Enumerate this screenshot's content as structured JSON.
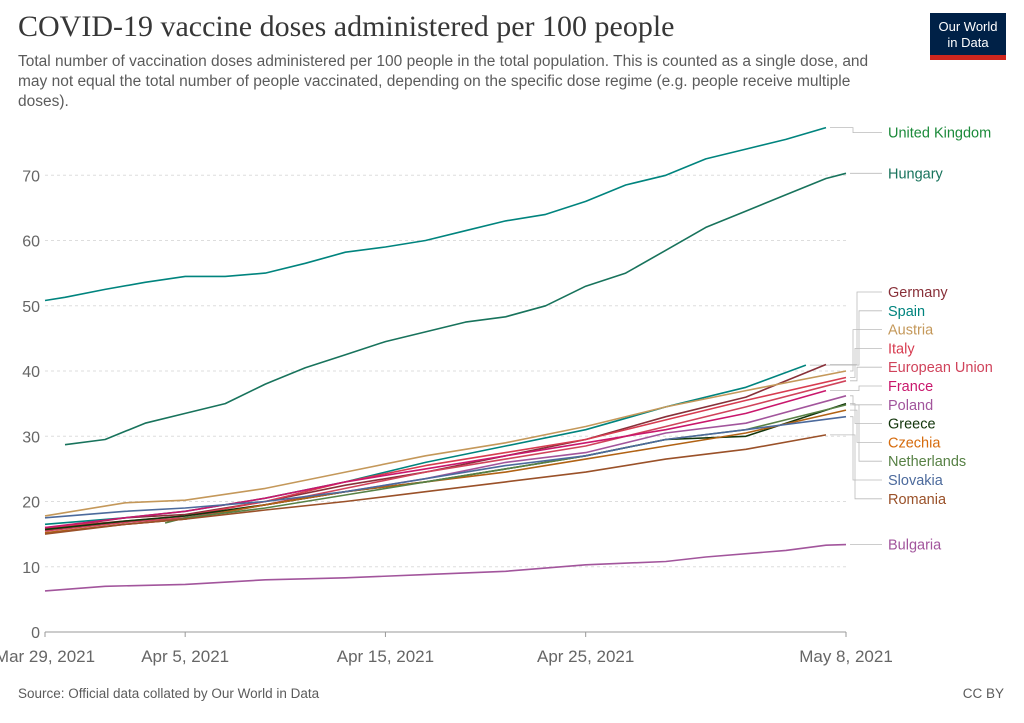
{
  "header": {
    "title": "COVID-19 vaccine doses administered per 100 people",
    "subtitle": "Total number of vaccination doses administered per 100 people in the total population. This is counted as a single dose, and may not equal the total number of people vaccinated, depending on the specific dose regime (e.g. people receive multiple doses).",
    "logo_line1": "Our World",
    "logo_line2": "in Data",
    "logo_bg": "#002147",
    "logo_accent": "#ce261e"
  },
  "footer": {
    "source": "Source: Official data collated by Our World in Data",
    "license": "CC BY"
  },
  "chart_data": {
    "type": "line",
    "x_ticks": [
      "Mar 29, 2021",
      "Apr 5, 2021",
      "Apr 15, 2021",
      "Apr 25, 2021",
      "May 8, 2021"
    ],
    "x_tick_dates": [
      "2021-03-29",
      "2021-04-05",
      "2021-04-15",
      "2021-04-25",
      "2021-05-08"
    ],
    "xlim": [
      "2021-03-29",
      "2021-05-08"
    ],
    "ylim": [
      0,
      80
    ],
    "y_ticks": [
      0,
      10,
      20,
      30,
      40,
      50,
      60,
      70
    ],
    "grid": "horizontal dashed",
    "legend": "labels at right end of lines",
    "series": [
      {
        "name": "United Kingdom",
        "color": "#00847e",
        "label_color": "#1b8a3a",
        "points": [
          [
            "2021-03-29",
            50.8
          ],
          [
            "2021-03-30",
            51.3
          ],
          [
            "2021-04-01",
            52.5
          ],
          [
            "2021-04-03",
            53.6
          ],
          [
            "2021-04-05",
            54.5
          ],
          [
            "2021-04-07",
            54.5
          ],
          [
            "2021-04-09",
            55.0
          ],
          [
            "2021-04-11",
            56.5
          ],
          [
            "2021-04-13",
            58.2
          ],
          [
            "2021-04-15",
            59.0
          ],
          [
            "2021-04-17",
            60.0
          ],
          [
            "2021-04-19",
            61.5
          ],
          [
            "2021-04-21",
            63.0
          ],
          [
            "2021-04-23",
            64.0
          ],
          [
            "2021-04-25",
            66.0
          ],
          [
            "2021-04-27",
            68.5
          ],
          [
            "2021-04-29",
            70.0
          ],
          [
            "2021-05-01",
            72.5
          ],
          [
            "2021-05-03",
            74.0
          ],
          [
            "2021-05-05",
            75.5
          ],
          [
            "2021-05-07",
            77.3
          ]
        ]
      },
      {
        "name": "Hungary",
        "color": "#18735c",
        "label_color": "#18735c",
        "points": [
          [
            "2021-03-30",
            28.7
          ],
          [
            "2021-04-01",
            29.5
          ],
          [
            "2021-04-03",
            32.0
          ],
          [
            "2021-04-05",
            33.5
          ],
          [
            "2021-04-07",
            35.0
          ],
          [
            "2021-04-09",
            38.0
          ],
          [
            "2021-04-11",
            40.5
          ],
          [
            "2021-04-13",
            42.5
          ],
          [
            "2021-04-15",
            44.5
          ],
          [
            "2021-04-17",
            46.0
          ],
          [
            "2021-04-19",
            47.5
          ],
          [
            "2021-04-21",
            48.3
          ],
          [
            "2021-04-23",
            50.0
          ],
          [
            "2021-04-25",
            53.0
          ],
          [
            "2021-04-27",
            55.0
          ],
          [
            "2021-04-29",
            58.5
          ],
          [
            "2021-05-01",
            62.0
          ],
          [
            "2021-05-03",
            64.5
          ],
          [
            "2021-05-05",
            67.0
          ],
          [
            "2021-05-07",
            69.5
          ],
          [
            "2021-05-08",
            70.3
          ]
        ]
      },
      {
        "name": "Germany",
        "color": "#883039",
        "label_color": "#883039",
        "points": [
          [
            "2021-03-29",
            15.8
          ],
          [
            "2021-04-02",
            17.5
          ],
          [
            "2021-04-05",
            18.0
          ],
          [
            "2021-04-09",
            20.0
          ],
          [
            "2021-04-13",
            22.5
          ],
          [
            "2021-04-17",
            24.5
          ],
          [
            "2021-04-21",
            27.0
          ],
          [
            "2021-04-25",
            29.5
          ],
          [
            "2021-04-29",
            33.0
          ],
          [
            "2021-05-03",
            36.0
          ],
          [
            "2021-05-07",
            41.0
          ]
        ]
      },
      {
        "name": "Spain",
        "color": "#00847e",
        "label_color": "#00847e",
        "points": [
          [
            "2021-03-29",
            16.5
          ],
          [
            "2021-04-02",
            17.5
          ],
          [
            "2021-04-05",
            18.5
          ],
          [
            "2021-04-09",
            20.5
          ],
          [
            "2021-04-13",
            23.0
          ],
          [
            "2021-04-17",
            26.0
          ],
          [
            "2021-04-21",
            28.5
          ],
          [
            "2021-04-25",
            31.0
          ],
          [
            "2021-04-29",
            34.5
          ],
          [
            "2021-05-03",
            37.5
          ],
          [
            "2021-05-06",
            40.9
          ]
        ]
      },
      {
        "name": "Austria",
        "color": "#c4985a",
        "label_color": "#c4985a",
        "points": [
          [
            "2021-03-29",
            17.8
          ],
          [
            "2021-04-02",
            19.8
          ],
          [
            "2021-04-05",
            20.2
          ],
          [
            "2021-04-09",
            22.0
          ],
          [
            "2021-04-13",
            24.5
          ],
          [
            "2021-04-17",
            27.0
          ],
          [
            "2021-04-21",
            29.0
          ],
          [
            "2021-04-25",
            31.5
          ],
          [
            "2021-04-29",
            34.5
          ],
          [
            "2021-05-03",
            37.0
          ],
          [
            "2021-05-08",
            40.0
          ]
        ]
      },
      {
        "name": "Italy",
        "color": "#d73c50",
        "label_color": "#d73c50",
        "points": [
          [
            "2021-03-29",
            16.0
          ],
          [
            "2021-04-02",
            17.0
          ],
          [
            "2021-04-05",
            17.8
          ],
          [
            "2021-04-09",
            20.0
          ],
          [
            "2021-04-13",
            23.0
          ],
          [
            "2021-04-17",
            25.5
          ],
          [
            "2021-04-21",
            27.5
          ],
          [
            "2021-04-25",
            29.5
          ],
          [
            "2021-04-29",
            32.5
          ],
          [
            "2021-05-03",
            35.5
          ],
          [
            "2021-05-08",
            39.0
          ]
        ]
      },
      {
        "name": "European Union",
        "color": "#d0435b",
        "label_color": "#d0435b",
        "points": [
          [
            "2021-03-29",
            15.5
          ],
          [
            "2021-04-02",
            16.8
          ],
          [
            "2021-04-05",
            17.5
          ],
          [
            "2021-04-09",
            19.5
          ],
          [
            "2021-04-13",
            22.0
          ],
          [
            "2021-04-17",
            24.5
          ],
          [
            "2021-04-21",
            26.5
          ],
          [
            "2021-04-25",
            28.5
          ],
          [
            "2021-04-29",
            31.5
          ],
          [
            "2021-05-03",
            34.5
          ],
          [
            "2021-05-08",
            38.5
          ]
        ]
      },
      {
        "name": "France",
        "color": "#c9176c",
        "label_color": "#c9176c",
        "points": [
          [
            "2021-03-29",
            16.0
          ],
          [
            "2021-04-02",
            17.5
          ],
          [
            "2021-04-05",
            18.5
          ],
          [
            "2021-04-09",
            20.5
          ],
          [
            "2021-04-13",
            23.0
          ],
          [
            "2021-04-17",
            25.0
          ],
          [
            "2021-04-21",
            27.0
          ],
          [
            "2021-04-25",
            29.0
          ],
          [
            "2021-04-29",
            31.0
          ],
          [
            "2021-05-03",
            33.5
          ],
          [
            "2021-05-07",
            37.0
          ]
        ]
      },
      {
        "name": "Poland",
        "color": "#a2559c",
        "label_color": "#a2559c",
        "points": [
          [
            "2021-03-29",
            15.2
          ],
          [
            "2021-04-02",
            16.5
          ],
          [
            "2021-04-05",
            17.3
          ],
          [
            "2021-04-09",
            19.5
          ],
          [
            "2021-04-13",
            21.5
          ],
          [
            "2021-04-17",
            23.5
          ],
          [
            "2021-04-21",
            26.0
          ],
          [
            "2021-04-25",
            27.5
          ],
          [
            "2021-04-29",
            30.5
          ],
          [
            "2021-05-03",
            32.0
          ],
          [
            "2021-05-08",
            36.2
          ]
        ]
      },
      {
        "name": "Greece",
        "color": "#12350b",
        "label_color": "#12350b",
        "points": [
          [
            "2021-03-29",
            15.7
          ],
          [
            "2021-04-02",
            17.0
          ],
          [
            "2021-04-05",
            17.8
          ],
          [
            "2021-04-09",
            19.5
          ],
          [
            "2021-04-13",
            21.5
          ],
          [
            "2021-04-17",
            23.0
          ],
          [
            "2021-04-21",
            25.0
          ],
          [
            "2021-04-25",
            27.0
          ],
          [
            "2021-04-29",
            29.5
          ],
          [
            "2021-05-03",
            30.0
          ],
          [
            "2021-05-08",
            35.0
          ]
        ]
      },
      {
        "name": "Czechia",
        "color": "#b16214",
        "label_color": "#d66b0d",
        "points": [
          [
            "2021-03-29",
            15.2
          ],
          [
            "2021-04-02",
            16.5
          ],
          [
            "2021-04-05",
            17.3
          ],
          [
            "2021-04-09",
            19.5
          ],
          [
            "2021-04-13",
            21.5
          ],
          [
            "2021-04-17",
            23.0
          ],
          [
            "2021-04-21",
            24.5
          ],
          [
            "2021-04-25",
            26.5
          ],
          [
            "2021-04-29",
            28.5
          ],
          [
            "2021-05-03",
            30.5
          ],
          [
            "2021-05-08",
            34.0
          ]
        ]
      },
      {
        "name": "Netherlands",
        "color": "#578145",
        "label_color": "#578145",
        "points": [
          [
            "2021-04-04",
            16.7
          ],
          [
            "2021-04-05",
            17.5
          ],
          [
            "2021-04-09",
            19.0
          ],
          [
            "2021-04-13",
            21.0
          ],
          [
            "2021-04-17",
            23.0
          ],
          [
            "2021-04-21",
            25.0
          ],
          [
            "2021-04-25",
            27.0
          ],
          [
            "2021-04-29",
            29.5
          ],
          [
            "2021-05-03",
            31.0
          ],
          [
            "2021-05-08",
            34.8
          ]
        ]
      },
      {
        "name": "Slovakia",
        "color": "#4c6a9c",
        "label_color": "#4c6a9c",
        "points": [
          [
            "2021-03-29",
            17.5
          ],
          [
            "2021-04-02",
            18.5
          ],
          [
            "2021-04-05",
            19.0
          ],
          [
            "2021-04-09",
            20.0
          ],
          [
            "2021-04-13",
            21.5
          ],
          [
            "2021-04-17",
            23.5
          ],
          [
            "2021-04-21",
            25.5
          ],
          [
            "2021-04-25",
            27.0
          ],
          [
            "2021-04-29",
            29.5
          ],
          [
            "2021-05-03",
            31.0
          ],
          [
            "2021-05-08",
            33.0
          ]
        ]
      },
      {
        "name": "Romania",
        "color": "#9a5129",
        "label_color": "#9a5129",
        "points": [
          [
            "2021-03-29",
            15.0
          ],
          [
            "2021-04-02",
            16.5
          ],
          [
            "2021-04-05",
            17.3
          ],
          [
            "2021-04-09",
            18.7
          ],
          [
            "2021-04-13",
            20.0
          ],
          [
            "2021-04-17",
            21.5
          ],
          [
            "2021-04-21",
            23.0
          ],
          [
            "2021-04-25",
            24.5
          ],
          [
            "2021-04-29",
            26.5
          ],
          [
            "2021-05-03",
            28.0
          ],
          [
            "2021-05-07",
            30.2
          ]
        ]
      },
      {
        "name": "Bulgaria",
        "color": "#a2559c",
        "label_color": "#a2559c",
        "points": [
          [
            "2021-03-29",
            6.3
          ],
          [
            "2021-04-01",
            7.0
          ],
          [
            "2021-04-05",
            7.3
          ],
          [
            "2021-04-09",
            8.0
          ],
          [
            "2021-04-13",
            8.3
          ],
          [
            "2021-04-17",
            8.8
          ],
          [
            "2021-04-21",
            9.3
          ],
          [
            "2021-04-25",
            10.3
          ],
          [
            "2021-04-29",
            10.8
          ],
          [
            "2021-05-01",
            11.5
          ],
          [
            "2021-05-05",
            12.5
          ],
          [
            "2021-05-07",
            13.3
          ],
          [
            "2021-05-08",
            13.4
          ]
        ]
      }
    ]
  }
}
